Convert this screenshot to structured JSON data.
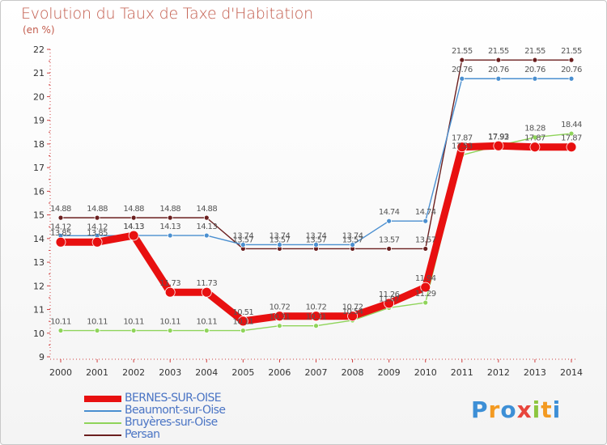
{
  "title": "Evolution du Taux de Taxe d'Habitation",
  "unit_label": "(en %)",
  "logo": {
    "letters": [
      "P",
      "r",
      "o",
      "x",
      "i",
      "t",
      "i"
    ],
    "colors": [
      "#3d8fd6",
      "#f39a22",
      "#3d8fd6",
      "#e8453c",
      "#8dc63f",
      "#f39a22",
      "#3d8fd6"
    ]
  },
  "chart_data": {
    "type": "line",
    "title": "Evolution du Taux de Taxe d'Habitation",
    "ylabel": "(en %)",
    "ylim": [
      9,
      22
    ],
    "yticks": [
      9,
      10,
      11,
      12,
      13,
      14,
      15,
      16,
      17,
      18,
      19,
      20,
      21,
      22
    ],
    "x": [
      2000,
      2001,
      2002,
      2003,
      2004,
      2005,
      2006,
      2007,
      2008,
      2009,
      2010,
      2011,
      2012,
      2013,
      2014
    ],
    "grid": false,
    "legend": "bottom-left",
    "series": [
      {
        "name": "Persan",
        "color": "#6b1f1f",
        "width": 1.4,
        "point": 3,
        "labels": true,
        "values": [
          14.88,
          14.88,
          14.88,
          14.88,
          14.88,
          13.57,
          13.57,
          13.57,
          13.57,
          13.57,
          13.57,
          21.55,
          21.55,
          21.55,
          21.55
        ]
      },
      {
        "name": "Beaumont-sur-Oise",
        "color": "#4a8fd0",
        "width": 1.4,
        "point": 3,
        "labels": true,
        "values": [
          14.12,
          14.12,
          14.13,
          14.13,
          14.13,
          13.74,
          13.74,
          13.74,
          13.74,
          14.74,
          14.74,
          20.76,
          20.76,
          20.76,
          20.76
        ]
      },
      {
        "name": "Bruyères-sur-Oise",
        "color": "#8fd45a",
        "width": 1.4,
        "point": 3,
        "labels": true,
        "values": [
          10.11,
          10.11,
          10.11,
          10.11,
          10.11,
          10.11,
          10.31,
          10.31,
          10.54,
          11.07,
          11.29,
          17.53,
          17.93,
          18.28,
          18.44
        ]
      },
      {
        "name": "BERNES-SUR-OISE",
        "color": "#e81010",
        "width": 9,
        "point": 6,
        "labels": true,
        "values": [
          13.85,
          13.85,
          14.13,
          11.73,
          11.73,
          10.51,
          10.72,
          10.72,
          10.72,
          11.26,
          11.94,
          17.87,
          17.92,
          17.87,
          17.87
        ]
      }
    ]
  }
}
